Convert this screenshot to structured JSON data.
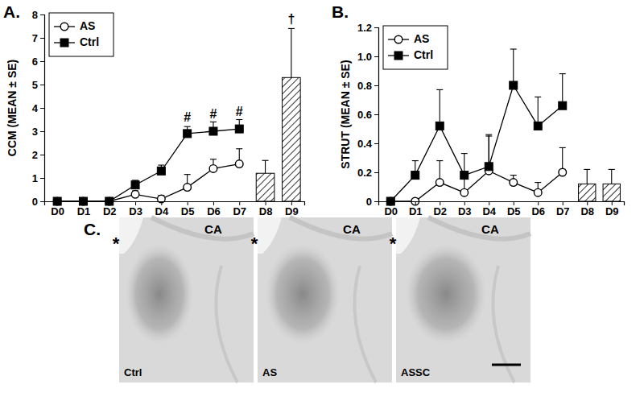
{
  "chart_data": [
    {
      "type": "line",
      "title": "A.",
      "ylabel": "CCM (MEAN ± SE)",
      "categories": [
        "D0",
        "D1",
        "D2",
        "D3",
        "D4",
        "D5",
        "D6",
        "D7",
        "D8",
        "D9"
      ],
      "ylim": [
        0,
        8
      ],
      "yticks": [
        0,
        1,
        2,
        3,
        4,
        5,
        6,
        7,
        8
      ],
      "grid": false,
      "legend": "upper left",
      "series": [
        {
          "name": "AS",
          "type": "line",
          "marker": "circle",
          "color": "#000000",
          "values": [
            0,
            0,
            0,
            0.3,
            0.1,
            0.6,
            1.4,
            1.6,
            null,
            null
          ],
          "errors": [
            null,
            null,
            null,
            0.15,
            0.15,
            0.55,
            0.4,
            0.65,
            null,
            null
          ]
        },
        {
          "name": "Ctrl",
          "type": "line",
          "marker": "square",
          "color": "#000000",
          "values": [
            0,
            0,
            0,
            0.7,
            1.3,
            2.9,
            3.0,
            3.1,
            null,
            null
          ],
          "errors": [
            null,
            null,
            null,
            0.2,
            0.25,
            0.3,
            0.4,
            0.4,
            null,
            null
          ]
        },
        {
          "type": "bar",
          "color": "#000000",
          "values": [
            null,
            null,
            null,
            null,
            null,
            null,
            null,
            null,
            1.2,
            5.3
          ],
          "errors": [
            null,
            null,
            null,
            null,
            null,
            null,
            null,
            null,
            0.55,
            2.1
          ]
        }
      ],
      "annotations": [
        {
          "text": "#",
          "category": 5,
          "value": 3.55
        },
        {
          "text": "#",
          "category": 6,
          "value": 3.7
        },
        {
          "text": "#",
          "category": 7,
          "value": 3.8
        },
        {
          "text": "†",
          "category": 9,
          "value": 7.75
        }
      ]
    },
    {
      "type": "line",
      "title": "B.",
      "ylabel": "STRUT (MEAN ± SE)",
      "categories": [
        "D0",
        "D1",
        "D2",
        "D3",
        "D4",
        "D5",
        "D6",
        "D7",
        "D8",
        "D9"
      ],
      "ylim": [
        0,
        1.2
      ],
      "yticks": [
        0,
        0.2,
        0.4,
        0.6,
        0.8,
        {
          "value": 1,
          "label": "1.0"
        },
        1.2
      ],
      "grid": false,
      "legend": "upper left",
      "series": [
        {
          "name": "AS",
          "type": "line",
          "marker": "circle",
          "color": "#000000",
          "values": [
            0,
            0,
            0.13,
            0.06,
            0.21,
            0.13,
            0.06,
            0.2,
            null,
            null
          ],
          "errors": [
            null,
            null,
            0.15,
            0.1,
            0.24,
            0.05,
            0.07,
            0.17,
            null,
            null
          ]
        },
        {
          "name": "Ctrl",
          "type": "line",
          "marker": "square",
          "color": "#000000",
          "values": [
            0,
            0.18,
            0.52,
            0.18,
            0.24,
            0.8,
            0.52,
            0.66,
            null,
            null
          ],
          "errors": [
            null,
            0.1,
            0.25,
            0.15,
            0.22,
            0.25,
            0.2,
            0.22,
            null,
            null
          ]
        },
        {
          "type": "bar",
          "color": "#000000",
          "values": [
            null,
            null,
            null,
            null,
            null,
            null,
            null,
            null,
            0.12,
            0.12
          ],
          "errors": [
            null,
            null,
            null,
            null,
            null,
            null,
            null,
            null,
            0.1,
            0.1
          ]
        }
      ]
    }
  ],
  "panel_c": {
    "label": "C.",
    "images": [
      {
        "region": "CA",
        "asterisk": "*",
        "condition": "Ctrl"
      },
      {
        "region": "CA",
        "asterisk": "*",
        "condition": "AS"
      },
      {
        "region": "CA",
        "asterisk": "*",
        "condition": "ASSC"
      }
    ]
  }
}
